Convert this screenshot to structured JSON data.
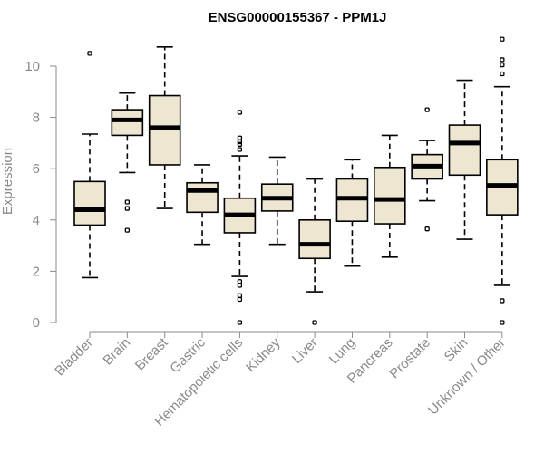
{
  "chart_data": {
    "type": "boxplot",
    "title": "ENSG00000155367 - PPM1J",
    "xlabel": "",
    "ylabel": "Expression",
    "ylim": [
      0,
      11
    ],
    "yticks": [
      0,
      2,
      4,
      6,
      8,
      10
    ],
    "grid": false,
    "categories": [
      "Bladder",
      "Brain",
      "Breast",
      "Gastric",
      "Hematopoietic cells",
      "Kidney",
      "Liver",
      "Lung",
      "Pancreas",
      "Prostate",
      "Skin",
      "Unknown / Other"
    ],
    "boxes": [
      {
        "min": 1.75,
        "q1": 3.8,
        "median": 4.4,
        "q3": 5.5,
        "max": 7.35,
        "outliers": [
          10.5
        ]
      },
      {
        "min": 5.85,
        "q1": 7.3,
        "median": 7.9,
        "q3": 8.3,
        "max": 8.95,
        "outliers": [
          4.7,
          4.45,
          3.6
        ]
      },
      {
        "min": 4.45,
        "q1": 6.15,
        "median": 7.6,
        "q3": 8.85,
        "max": 10.75,
        "outliers": []
      },
      {
        "min": 3.05,
        "q1": 4.3,
        "median": 5.15,
        "q3": 5.45,
        "max": 6.15,
        "outliers": []
      },
      {
        "min": 1.8,
        "q1": 3.5,
        "median": 4.2,
        "q3": 4.85,
        "max": 6.5,
        "outliers": [
          8.2,
          7.2,
          7.05,
          6.95,
          6.75,
          1.6,
          1.45,
          1.05,
          0.9,
          0.0
        ]
      },
      {
        "min": 3.05,
        "q1": 4.35,
        "median": 4.85,
        "q3": 5.4,
        "max": 6.45,
        "outliers": []
      },
      {
        "min": 1.2,
        "q1": 2.5,
        "median": 3.05,
        "q3": 4.0,
        "max": 5.6,
        "outliers": [
          0.0
        ]
      },
      {
        "min": 2.2,
        "q1": 3.95,
        "median": 4.85,
        "q3": 5.6,
        "max": 6.35,
        "outliers": []
      },
      {
        "min": 2.55,
        "q1": 3.85,
        "median": 4.8,
        "q3": 6.05,
        "max": 7.3,
        "outliers": []
      },
      {
        "min": 4.75,
        "q1": 5.6,
        "median": 6.1,
        "q3": 6.55,
        "max": 7.1,
        "outliers": [
          8.3,
          3.65
        ]
      },
      {
        "min": 3.25,
        "q1": 5.75,
        "median": 7.0,
        "q3": 7.7,
        "max": 9.45,
        "outliers": []
      },
      {
        "min": 1.45,
        "q1": 4.2,
        "median": 5.35,
        "q3": 6.35,
        "max": 9.2,
        "outliers": [
          11.05,
          10.25,
          10.05,
          9.7,
          0.85,
          0.0
        ]
      }
    ]
  }
}
